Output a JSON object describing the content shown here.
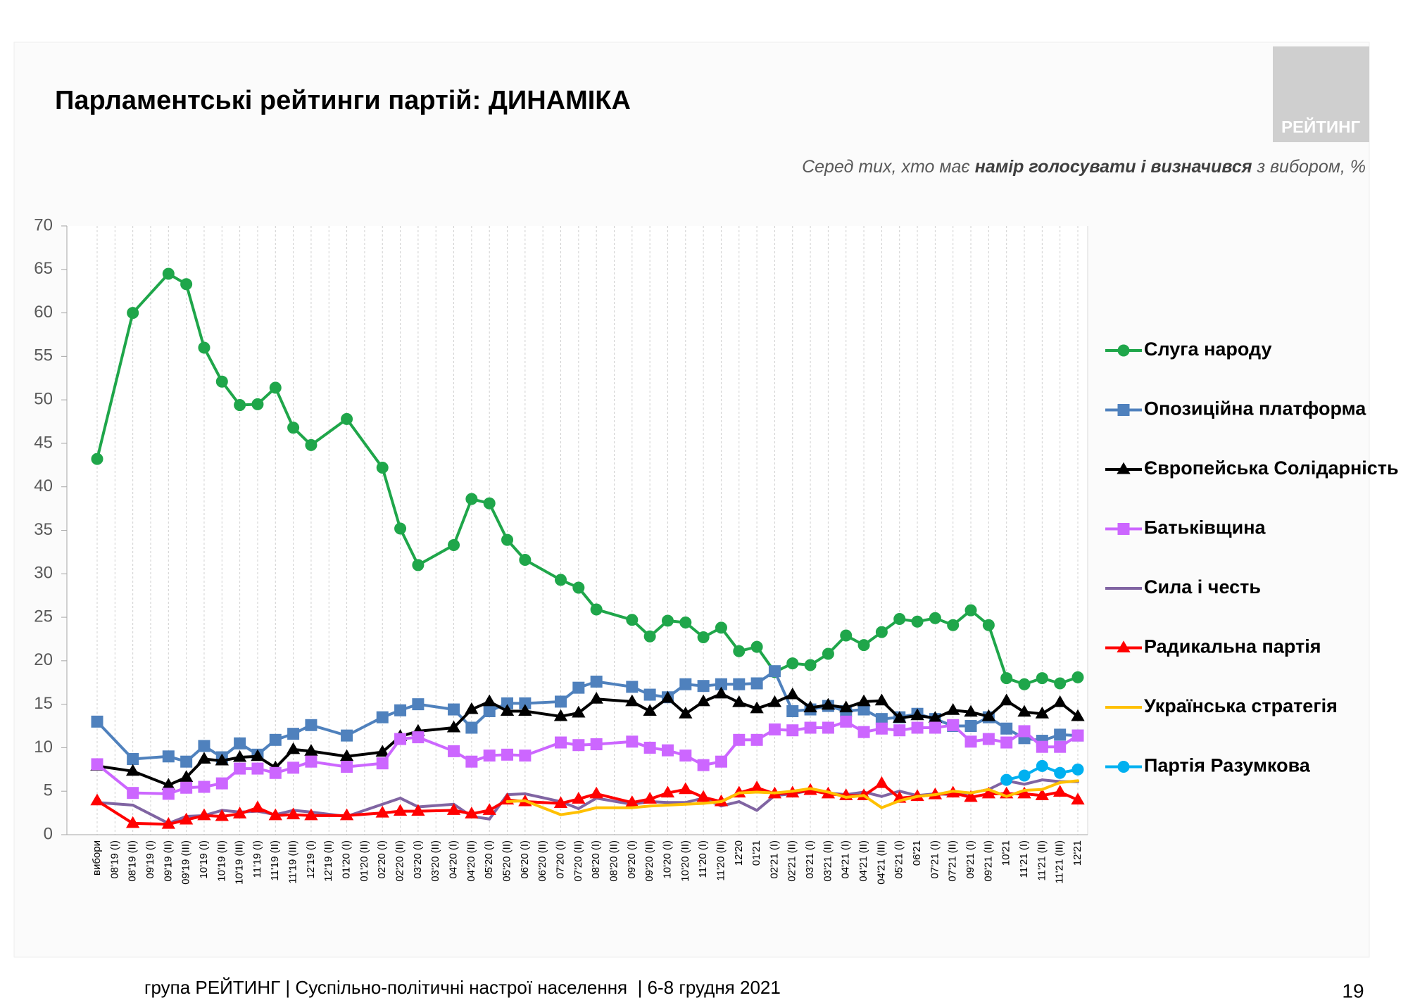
{
  "chart_data": {
    "type": "line",
    "title": "Парламентські рейтинги партій: ДИНАМІКА",
    "subtitle": [
      "Серед тих, хто має ",
      "намір голосувати і визначився",
      " з вибором, %"
    ],
    "categories": [
      "вибори",
      "08'19 (I)",
      "08'19 (II)",
      "09'19 (I)",
      "09'19 (II)",
      "09'19 (III)",
      "10'19 (I)",
      "10'19 (II)",
      "10'19 (III)",
      "11'19 (I)",
      "11'19 (II)",
      "11'19 (III)",
      "12'19 (I)",
      "12'19 (II)",
      "01'20 (I)",
      "01'20 (II)",
      "02'20 (I)",
      "02'20 (II)",
      "03'20 (I)",
      "03'20 (II)",
      "04'20 (I)",
      "04'20 (II)",
      "05'20 (I)",
      "05'20 (II)",
      "06'20 (I)",
      "06'20 (II)",
      "07'20 (I)",
      "07'20 (II)",
      "08'20 (I)",
      "08'20 (II)",
      "09'20 (I)",
      "09'20 (II)",
      "10'20 (I)",
      "10'20 (II)",
      "11'20 (I)",
      "11'20 (II)",
      "12'20",
      "01'21",
      "02'21 (I)",
      "02'21 (II)",
      "03'21 (I)",
      "03'21 (II)",
      "04'21 (I)",
      "04'21 (II)",
      "04'21 (III)",
      "05'21 (I)",
      "06'21",
      "07'21 (I)",
      "07'21 (II)",
      "09'21 (I)",
      "09'21 (II)",
      "10'21",
      "11'21 (I)",
      "11'21 (II)",
      "11'21 (III)",
      "12'21"
    ],
    "ylim": [
      0,
      70
    ],
    "yticks": [
      0,
      5,
      10,
      15,
      20,
      25,
      30,
      35,
      40,
      45,
      50,
      55,
      60,
      65,
      70
    ],
    "series": [
      {
        "name": "Слуга народу",
        "color": "#1fa64a",
        "marker": "circle",
        "values": [
          43.2,
          null,
          60,
          null,
          64.5,
          63.3,
          56,
          52.1,
          49.4,
          49.5,
          51.4,
          46.8,
          44.8,
          null,
          47.8,
          null,
          42.2,
          35.2,
          31,
          null,
          33.3,
          38.6,
          38.1,
          33.9,
          31.6,
          null,
          29.3,
          28.4,
          25.9,
          null,
          24.7,
          22.8,
          24.6,
          24.4,
          22.7,
          23.8,
          21.1,
          21.6,
          18.7,
          19.7,
          19.5,
          20.8,
          22.9,
          21.8,
          23.3,
          24.8,
          24.5,
          24.9,
          24.1,
          25.8,
          24.1,
          18,
          17.3,
          18,
          17.4,
          18.1
        ]
      },
      {
        "name": "Опозиційна платформа",
        "color": "#4f81bd",
        "marker": "square",
        "values": [
          13,
          null,
          8.7,
          null,
          9,
          8.4,
          10.2,
          8.9,
          10.5,
          9.2,
          10.9,
          11.6,
          12.6,
          null,
          11.4,
          null,
          13.5,
          14.3,
          15,
          null,
          14.4,
          12.3,
          14.2,
          15.1,
          15.1,
          null,
          15.3,
          16.9,
          17.6,
          null,
          17,
          16.1,
          15.8,
          17.3,
          17.1,
          17.3,
          17.3,
          17.4,
          18.8,
          14.2,
          14.4,
          14.8,
          14.2,
          14.4,
          13.3,
          13.5,
          13.9,
          13.3,
          12.5,
          12.5,
          13.5,
          12.2,
          11.1,
          10.8,
          11.5,
          11.4
        ]
      },
      {
        "name": "Європейська Солідарність",
        "color": "#000000",
        "marker": "triangle",
        "values": [
          7.9,
          null,
          7.3,
          null,
          5.7,
          6.6,
          8.7,
          8.5,
          8.9,
          9,
          7.7,
          9.8,
          9.6,
          null,
          9,
          null,
          9.5,
          11.3,
          11.9,
          null,
          12.3,
          14.4,
          15.3,
          14.2,
          14.2,
          null,
          13.6,
          14,
          15.6,
          null,
          15.3,
          14.2,
          15.7,
          13.9,
          15.3,
          16.2,
          15.2,
          14.5,
          15.2,
          16.1,
          14.6,
          14.9,
          14.6,
          15.3,
          15.4,
          13.4,
          13.7,
          13.4,
          14.3,
          14.1,
          13.6,
          15.4,
          14.1,
          13.9,
          15.2,
          13.6
        ]
      },
      {
        "name": "Батьківщина",
        "color": "#cc66ff",
        "marker": "square",
        "values": [
          8.1,
          null,
          4.8,
          null,
          4.7,
          5.4,
          5.5,
          5.9,
          7.6,
          7.6,
          7.1,
          7.7,
          8.4,
          null,
          7.8,
          null,
          8.2,
          11,
          11.2,
          null,
          9.6,
          8.4,
          9.1,
          9.2,
          9.1,
          null,
          10.6,
          10.3,
          10.4,
          null,
          10.7,
          10,
          9.7,
          9.1,
          8,
          8.4,
          10.9,
          10.9,
          12.1,
          12,
          12.3,
          12.3,
          13,
          11.8,
          12.2,
          12,
          12.3,
          12.3,
          12.6,
          10.7,
          11,
          10.6,
          11.9,
          10.1,
          10.1,
          11.4
        ]
      },
      {
        "name": "Сила і честь",
        "color": "#8064a2",
        "marker": "none",
        "values": [
          3.7,
          null,
          3.4,
          null,
          1.3,
          2.1,
          2.2,
          2.8,
          2.6,
          2.7,
          2.3,
          2.8,
          2.6,
          null,
          2.1,
          null,
          3.5,
          4.2,
          3.2,
          null,
          3.5,
          2.1,
          1.8,
          4.6,
          4.7,
          null,
          3.8,
          3,
          4.2,
          null,
          3.5,
          3.8,
          3.7,
          3.7,
          4.2,
          3.3,
          3.8,
          2.8,
          4.5,
          4.7,
          5.1,
          4.8,
          4.6,
          4.9,
          4.4,
          5,
          4.5,
          4.7,
          4.6,
          4.8,
          5.2,
          6.2,
          5.8,
          6.3,
          6.1,
          6.1
        ]
      },
      {
        "name": "Радикальна партія",
        "color": "#ff0000",
        "marker": "triangle",
        "values": [
          3.9,
          null,
          1.3,
          null,
          1.2,
          1.7,
          2.2,
          2.1,
          2.4,
          3.1,
          2.2,
          2.3,
          2.2,
          null,
          2.2,
          null,
          2.5,
          2.7,
          2.7,
          null,
          2.8,
          2.4,
          2.8,
          4,
          3.8,
          null,
          3.6,
          4.1,
          4.7,
          null,
          3.7,
          4.1,
          4.8,
          5.2,
          4.3,
          3.8,
          4.8,
          5.4,
          4.7,
          4.8,
          5.1,
          4.7,
          4.5,
          4.5,
          5.9,
          4.2,
          4.4,
          4.6,
          4.8,
          4.3,
          4.7,
          4.7,
          4.7,
          4.5,
          4.9,
          4
        ]
      },
      {
        "name": "Українська стратегія",
        "color": "#ffc000",
        "marker": "none",
        "values": [
          null,
          null,
          null,
          null,
          null,
          null,
          null,
          null,
          null,
          null,
          null,
          null,
          null,
          null,
          null,
          null,
          null,
          null,
          null,
          null,
          null,
          null,
          null,
          3.8,
          3.9,
          null,
          2.3,
          2.6,
          3.1,
          null,
          3.1,
          3.3,
          3.4,
          3.5,
          3.6,
          3.8,
          4.8,
          4.9,
          4.8,
          5,
          5.3,
          4.9,
          4.3,
          4.5,
          3.1,
          3.9,
          4.4,
          4.6,
          5,
          4.8,
          5.2,
          4.4,
          5.1,
          5.2,
          6,
          6.2
        ]
      },
      {
        "name": "Партія Разумкова",
        "color": "#00b0f0",
        "marker": "circle",
        "values": [
          null,
          null,
          null,
          null,
          null,
          null,
          null,
          null,
          null,
          null,
          null,
          null,
          null,
          null,
          null,
          null,
          null,
          null,
          null,
          null,
          null,
          null,
          null,
          null,
          null,
          null,
          null,
          null,
          null,
          null,
          null,
          null,
          null,
          null,
          null,
          null,
          null,
          null,
          null,
          null,
          null,
          null,
          null,
          null,
          null,
          null,
          null,
          null,
          null,
          null,
          null,
          6.3,
          6.8,
          7.9,
          7.1,
          7.5
        ]
      }
    ]
  },
  "logo": "РЕЙТИНГ",
  "footer": "група РЕЙТИНГ | Суспільно-політичні настрої населення  | 6-8 грудня 2021",
  "page_number": "19"
}
